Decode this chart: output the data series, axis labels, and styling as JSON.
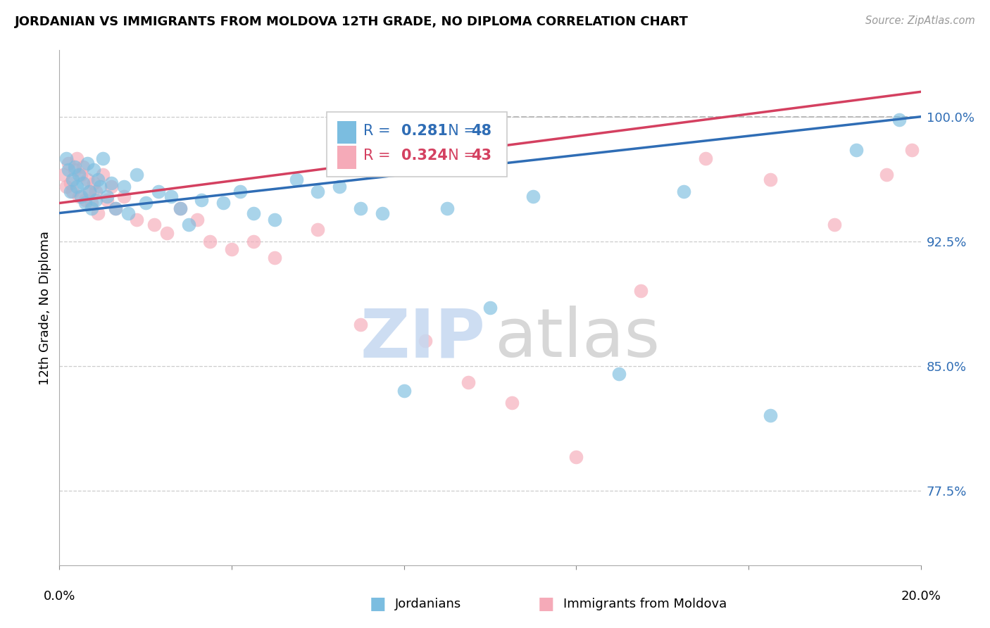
{
  "title": "JORDANIAN VS IMMIGRANTS FROM MOLDOVA 12TH GRADE, NO DIPLOMA CORRELATION CHART",
  "source": "Source: ZipAtlas.com",
  "ylabel": "12th Grade, No Diploma",
  "yticks": [
    77.5,
    85.0,
    92.5,
    100.0
  ],
  "ytick_labels": [
    "77.5%",
    "85.0%",
    "92.5%",
    "100.0%"
  ],
  "xmin": 0.0,
  "xmax": 20.0,
  "ymin": 73.0,
  "ymax": 104.0,
  "legend_r_blue": "0.281",
  "legend_n_blue": "48",
  "legend_r_pink": "0.324",
  "legend_n_pink": "43",
  "legend_label_blue": "Jordanians",
  "legend_label_pink": "Immigrants from Moldova",
  "blue_color": "#7bbde0",
  "pink_color": "#f5aab8",
  "trendline_blue": "#2f6db5",
  "trendline_pink": "#d44060",
  "blue_trend_x0": 0.0,
  "blue_trend_y0": 94.2,
  "blue_trend_x1": 20.0,
  "blue_trend_y1": 100.0,
  "pink_trend_x0": 0.0,
  "pink_trend_y0": 94.8,
  "pink_trend_x1": 20.0,
  "pink_trend_y1": 101.5,
  "blue_x": [
    0.15,
    0.2,
    0.25,
    0.3,
    0.35,
    0.4,
    0.45,
    0.5,
    0.55,
    0.6,
    0.65,
    0.7,
    0.75,
    0.8,
    0.85,
    0.9,
    0.95,
    1.0,
    1.1,
    1.2,
    1.3,
    1.5,
    1.6,
    1.8,
    2.0,
    2.3,
    2.6,
    2.8,
    3.0,
    3.3,
    3.8,
    4.2,
    4.5,
    5.0,
    5.5,
    6.0,
    6.5,
    7.0,
    7.5,
    8.0,
    9.0,
    10.0,
    11.0,
    13.0,
    14.5,
    16.5,
    18.5,
    19.5
  ],
  "blue_y": [
    97.5,
    96.8,
    95.5,
    96.2,
    97.0,
    95.8,
    96.5,
    95.2,
    96.0,
    94.8,
    97.2,
    95.5,
    94.5,
    96.8,
    95.0,
    96.2,
    95.8,
    97.5,
    95.2,
    96.0,
    94.5,
    95.8,
    94.2,
    96.5,
    94.8,
    95.5,
    95.2,
    94.5,
    93.5,
    95.0,
    94.8,
    95.5,
    94.2,
    93.8,
    96.2,
    95.5,
    95.8,
    94.5,
    94.2,
    83.5,
    94.5,
    88.5,
    95.2,
    84.5,
    95.5,
    82.0,
    98.0,
    99.8
  ],
  "pink_x": [
    0.1,
    0.15,
    0.2,
    0.25,
    0.3,
    0.35,
    0.4,
    0.45,
    0.5,
    0.55,
    0.6,
    0.65,
    0.7,
    0.75,
    0.8,
    0.85,
    0.9,
    1.0,
    1.1,
    1.2,
    1.3,
    1.5,
    1.8,
    2.2,
    2.5,
    2.8,
    3.2,
    3.5,
    4.0,
    4.5,
    5.0,
    6.0,
    7.0,
    8.5,
    9.5,
    10.5,
    12.0,
    13.5,
    15.0,
    16.5,
    18.0,
    19.2,
    19.8
  ],
  "pink_y": [
    96.5,
    95.8,
    97.2,
    96.0,
    95.5,
    96.8,
    97.5,
    95.2,
    96.5,
    97.0,
    95.0,
    96.2,
    95.5,
    94.8,
    96.0,
    95.5,
    94.2,
    96.5,
    95.0,
    95.8,
    94.5,
    95.2,
    93.8,
    93.5,
    93.0,
    94.5,
    93.8,
    92.5,
    92.0,
    92.5,
    91.5,
    93.2,
    87.5,
    86.5,
    84.0,
    82.8,
    79.5,
    89.5,
    97.5,
    96.2,
    93.5,
    96.5,
    98.0
  ],
  "watermark_zip_color": "#c5d8f0",
  "watermark_atlas_color": "#d0d0d0"
}
